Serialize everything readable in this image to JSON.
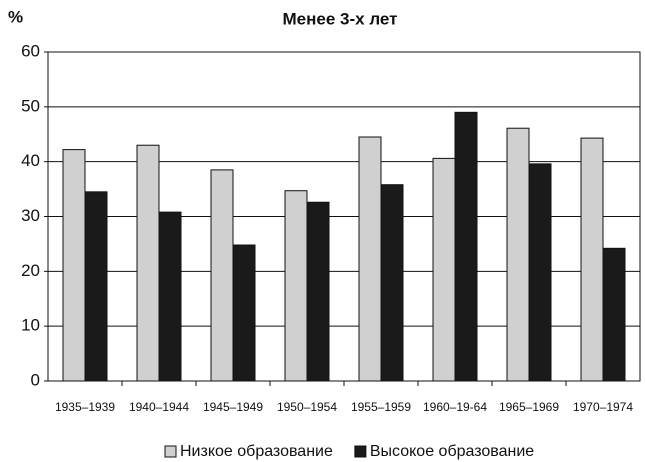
{
  "chart_data": {
    "type": "bar",
    "title": "Менее 3-х лет",
    "y_label": "%",
    "categories": [
      "1935–1939",
      "1940–1944",
      "1945–1949",
      "1950–1954",
      "1955–1959",
      "1960–19-64",
      "1965–1969",
      "1970–1974"
    ],
    "series": [
      {
        "name": "Низкое образование",
        "color": "#d0d0d0",
        "values": [
          42.2,
          43,
          38.5,
          34.7,
          44.5,
          40.6,
          46.1,
          44.3
        ]
      },
      {
        "name": "Высокое образование",
        "color": "#1a1a1a",
        "values": [
          34.5,
          30.8,
          24.8,
          32.6,
          35.8,
          49,
          39.6,
          24.2
        ]
      }
    ],
    "ylim": [
      0,
      60
    ],
    "yticks": [
      0,
      10,
      20,
      30,
      40,
      50,
      60
    ],
    "grid": true,
    "legend": "bottom"
  }
}
